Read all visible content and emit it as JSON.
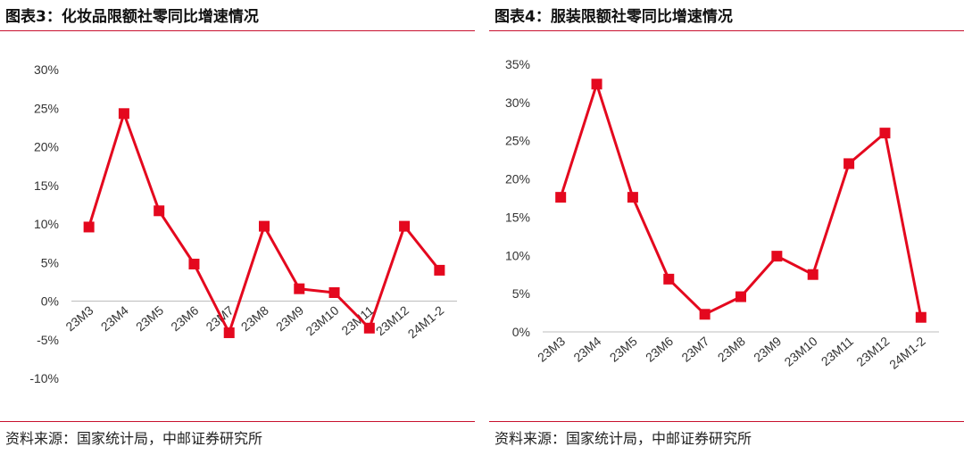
{
  "figures": [
    {
      "title": "图表3：化妆品限额社零同比增速情况",
      "source": "资料来源：国家统计局，中邮证券研究所"
    },
    {
      "title": "图表4：服装限额社零同比增速情况",
      "source": "资料来源：国家统计局，中邮证券研究所"
    }
  ],
  "chart_data": [
    {
      "type": "line",
      "title": "",
      "xlabel": "",
      "ylabel": "",
      "categories": [
        "23M3",
        "23M4",
        "23M5",
        "23M6",
        "23M7",
        "23M8",
        "23M9",
        "23M10",
        "23M11",
        "23M12",
        "24M1-2"
      ],
      "series": [
        {
          "values": [
            9.6,
            24.3,
            11.7,
            4.8,
            -4.1,
            9.7,
            1.6,
            1.1,
            -3.5,
            9.7,
            4.0
          ]
        }
      ],
      "ylim": [
        -10,
        30
      ],
      "yticks": [
        -10,
        -5,
        0,
        5,
        10,
        15,
        20,
        25,
        30
      ],
      "ytick_labels": [
        "-10%",
        "-5%",
        "0%",
        "5%",
        "10%",
        "15%",
        "20%",
        "25%",
        "30%"
      ],
      "color": "#e4081e",
      "grid": false,
      "legend": "none"
    },
    {
      "type": "line",
      "title": "",
      "xlabel": "",
      "ylabel": "",
      "categories": [
        "23M3",
        "23M4",
        "23M5",
        "23M6",
        "23M7",
        "23M8",
        "23M9",
        "23M10",
        "23M11",
        "23M12",
        "24M1-2"
      ],
      "series": [
        {
          "values": [
            17.6,
            32.4,
            17.6,
            6.9,
            2.3,
            4.6,
            9.9,
            7.5,
            22.0,
            26.0,
            1.9
          ]
        }
      ],
      "ylim": [
        0,
        35
      ],
      "yticks": [
        0,
        5,
        10,
        15,
        20,
        25,
        30,
        35
      ],
      "ytick_labels": [
        "0%",
        "5%",
        "10%",
        "15%",
        "20%",
        "25%",
        "30%",
        "35%"
      ],
      "color": "#e4081e",
      "grid": false,
      "legend": "none"
    }
  ]
}
